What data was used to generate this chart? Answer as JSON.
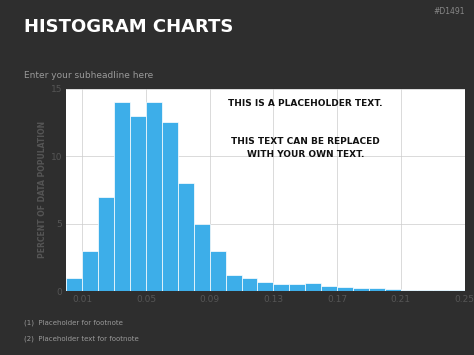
{
  "title": "HISTOGRAM CHARTS",
  "subtitle": "Enter your subheadline here",
  "watermark": "#D1491",
  "footnote1": "(1)  Placeholder for footnote",
  "footnote2": "(2)  Placeholder text for footnote",
  "bg_color": "#2e2e2e",
  "chart_bg": "#ffffff",
  "bar_color": "#3daee9",
  "ylabel": "PERCENT OF DATA POPULATION",
  "annotation_line1": "THIS IS A PLACEHOLDER TEXT.",
  "annotation_line2": "THIS TEXT CAN BE REPLACED\nWITH YOUR OWN TEXT.",
  "bin_edges": [
    0.0,
    0.01,
    0.02,
    0.03,
    0.04,
    0.05,
    0.06,
    0.07,
    0.08,
    0.09,
    0.1,
    0.11,
    0.12,
    0.13,
    0.14,
    0.15,
    0.16,
    0.17,
    0.18,
    0.19,
    0.2,
    0.21,
    0.22,
    0.23,
    0.24,
    0.25
  ],
  "bar_heights": [
    1.0,
    3.0,
    7.0,
    14.0,
    13.0,
    14.0,
    12.5,
    8.0,
    5.0,
    3.0,
    1.2,
    1.0,
    0.7,
    0.5,
    0.5,
    0.6,
    0.4,
    0.3,
    0.25,
    0.2,
    0.15,
    0.1,
    0.1,
    0.1,
    0.05
  ],
  "ylim": [
    0,
    15
  ],
  "yticks": [
    0,
    5,
    10,
    15
  ],
  "xtick_labels": [
    "0.01",
    "0.05",
    "0.09",
    "0.13",
    "0.17",
    "0.21",
    "0.25"
  ],
  "xtick_positions": [
    0.01,
    0.05,
    0.09,
    0.13,
    0.17,
    0.21,
    0.25
  ]
}
